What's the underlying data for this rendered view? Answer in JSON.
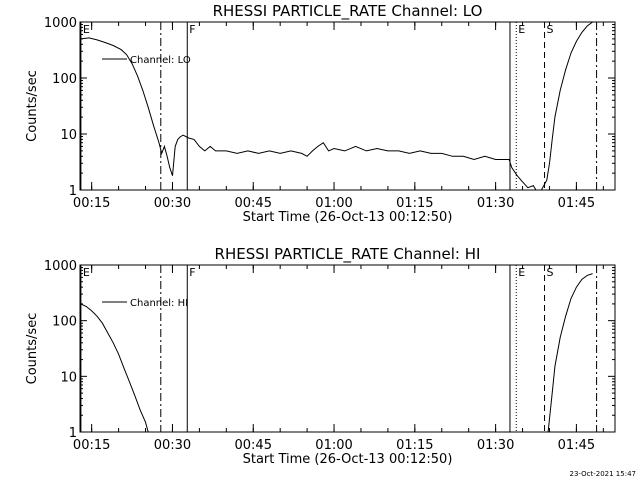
{
  "chart_data": [
    {
      "type": "line",
      "title": "RHESSI PARTICLE_RATE Channel: LO",
      "xlabel": "Start Time (26-Oct-13 00:12:50)",
      "ylabel": "Counts/sec",
      "yscale": "log",
      "ylim": [
        1,
        1000
      ],
      "xlim": [
        "00:12:50",
        "01:52:10"
      ],
      "x_tick_labels": [
        "00:15",
        "00:30",
        "00:45",
        "01:00",
        "01:15",
        "01:30",
        "01:45"
      ],
      "y_tick_labels": [
        "1",
        "10",
        "100",
        "1000"
      ],
      "legend": {
        "label": "Channel: LO",
        "placement": "top-left"
      },
      "grid": false,
      "event_markers": [
        {
          "label": "E",
          "time": "00:13:00",
          "style": "solid"
        },
        {
          "label": "",
          "time": "00:27:50",
          "style": "dash-dot"
        },
        {
          "label": "F",
          "time": "00:32:45",
          "style": "solid"
        },
        {
          "label": "",
          "time": "01:32:40",
          "style": "solid"
        },
        {
          "label": "E",
          "time": "01:33:50",
          "style": "dotted"
        },
        {
          "label": "S",
          "time": "01:39:05",
          "style": "dashed"
        },
        {
          "label": "",
          "time": "01:48:45",
          "style": "dash-dot"
        }
      ],
      "series": [
        {
          "name": "Channel: LO",
          "points": [
            [
              "00:13:00",
              500
            ],
            [
              "00:14:30",
              520
            ],
            [
              "00:16:00",
              480
            ],
            [
              "00:17:30",
              430
            ],
            [
              "00:19:00",
              380
            ],
            [
              "00:20:30",
              320
            ],
            [
              "00:21:30",
              260
            ],
            [
              "00:22:30",
              180
            ],
            [
              "00:23:30",
              110
            ],
            [
              "00:24:30",
              60
            ],
            [
              "00:25:30",
              30
            ],
            [
              "00:26:30",
              14
            ],
            [
              "00:27:30",
              7
            ],
            [
              "00:28:00",
              4.5
            ],
            [
              "00:28:30",
              6
            ],
            [
              "00:29:00",
              4
            ],
            [
              "00:29:30",
              2.5
            ],
            [
              "00:30:00",
              1.8
            ],
            [
              "00:30:30",
              6
            ],
            [
              "00:31:00",
              8
            ],
            [
              "00:31:30",
              9
            ],
            [
              "00:32:00",
              9.5
            ],
            [
              "00:33:00",
              8.5
            ],
            [
              "00:34:00",
              8
            ],
            [
              "00:35:00",
              6
            ],
            [
              "00:36:00",
              5
            ],
            [
              "00:37:00",
              6
            ],
            [
              "00:38:00",
              5
            ],
            [
              "00:40:00",
              5
            ],
            [
              "00:42:00",
              4.5
            ],
            [
              "00:44:00",
              5
            ],
            [
              "00:46:00",
              4.5
            ],
            [
              "00:48:00",
              5
            ],
            [
              "00:50:00",
              4.5
            ],
            [
              "00:52:00",
              5
            ],
            [
              "00:54:00",
              4.5
            ],
            [
              "00:55:00",
              4
            ],
            [
              "00:56:00",
              5
            ],
            [
              "00:57:00",
              6
            ],
            [
              "00:58:00",
              7
            ],
            [
              "00:59:00",
              5
            ],
            [
              "01:00:00",
              5.5
            ],
            [
              "01:02:00",
              5
            ],
            [
              "01:04:00",
              6
            ],
            [
              "01:06:00",
              5
            ],
            [
              "01:08:00",
              5.5
            ],
            [
              "01:10:00",
              5
            ],
            [
              "01:12:00",
              5
            ],
            [
              "01:14:00",
              4.5
            ],
            [
              "01:16:00",
              5
            ],
            [
              "01:18:00",
              4.5
            ],
            [
              "01:20:00",
              4.5
            ],
            [
              "01:22:00",
              4
            ],
            [
              "01:24:00",
              4
            ],
            [
              "01:26:00",
              3.5
            ],
            [
              "01:28:00",
              4
            ],
            [
              "01:30:00",
              3.5
            ],
            [
              "01:31:00",
              3.5
            ],
            [
              "01:32:30",
              3.5
            ],
            [
              "01:33:00",
              2.5
            ],
            [
              "01:34:00",
              1.8
            ],
            [
              "01:35:00",
              1.4
            ],
            [
              "01:36:00",
              1.1
            ],
            [
              "01:37:00",
              1.2
            ],
            [
              "01:37:30",
              1
            ],
            [
              "01:38:30",
              1
            ],
            [
              "01:39:30",
              1.5
            ],
            [
              "01:40:00",
              3
            ],
            [
              "01:40:30",
              8
            ],
            [
              "01:41:00",
              20
            ],
            [
              "01:42:00",
              60
            ],
            [
              "01:43:00",
              140
            ],
            [
              "01:44:00",
              280
            ],
            [
              "01:45:00",
              450
            ],
            [
              "01:46:00",
              650
            ],
            [
              "01:47:00",
              850
            ],
            [
              "01:48:00",
              1000
            ]
          ]
        }
      ]
    },
    {
      "type": "line",
      "title": "RHESSI PARTICLE_RATE Channel: HI",
      "xlabel": "Start Time (26-Oct-13 00:12:50)",
      "ylabel": "Counts/sec",
      "yscale": "log",
      "ylim": [
        1,
        1000
      ],
      "xlim": [
        "00:12:50",
        "01:52:10"
      ],
      "x_tick_labels": [
        "00:15",
        "00:30",
        "00:45",
        "01:00",
        "01:15",
        "01:30",
        "01:45"
      ],
      "y_tick_labels": [
        "1",
        "10",
        "100",
        "1000"
      ],
      "legend": {
        "label": "Channel: HI",
        "placement": "top-left"
      },
      "grid": false,
      "event_markers": [
        {
          "label": "E",
          "time": "00:13:00",
          "style": "solid"
        },
        {
          "label": "",
          "time": "00:27:50",
          "style": "dash-dot"
        },
        {
          "label": "F",
          "time": "00:32:45",
          "style": "solid"
        },
        {
          "label": "",
          "time": "01:32:40",
          "style": "solid"
        },
        {
          "label": "E",
          "time": "01:33:50",
          "style": "dotted"
        },
        {
          "label": "S",
          "time": "01:39:05",
          "style": "dashed"
        },
        {
          "label": "",
          "time": "01:48:45",
          "style": "dash-dot"
        }
      ],
      "series": [
        {
          "name": "Channel: HI",
          "points": [
            [
              "00:13:00",
              200
            ],
            [
              "00:14:00",
              180
            ],
            [
              "00:15:00",
              150
            ],
            [
              "00:16:00",
              120
            ],
            [
              "00:17:00",
              90
            ],
            [
              "00:18:00",
              60
            ],
            [
              "00:19:00",
              40
            ],
            [
              "00:20:00",
              25
            ],
            [
              "00:21:00",
              14
            ],
            [
              "00:22:00",
              8
            ],
            [
              "00:23:00",
              4.5
            ],
            [
              "00:24:00",
              2.5
            ],
            [
              "00:25:00",
              1.5
            ],
            [
              "00:25:30",
              1
            ],
            [
              "01:39:45",
              1
            ],
            [
              "01:40:30",
              5
            ],
            [
              "01:41:00",
              15
            ],
            [
              "01:42:00",
              50
            ],
            [
              "01:43:00",
              120
            ],
            [
              "01:44:00",
              250
            ],
            [
              "01:45:00",
              400
            ],
            [
              "01:46:00",
              550
            ],
            [
              "01:47:00",
              650
            ],
            [
              "01:48:00",
              700
            ]
          ]
        }
      ]
    }
  ],
  "timestamp": "23-Oct-2021 15:47"
}
